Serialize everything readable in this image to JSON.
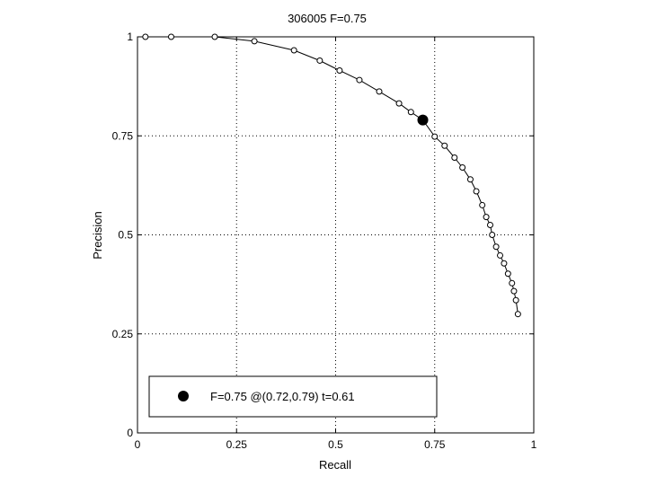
{
  "chart_data": {
    "type": "line",
    "title": "306005 F=0.75",
    "xlabel": "Recall",
    "ylabel": "Precision",
    "xlim": [
      0,
      1
    ],
    "ylim": [
      0,
      1
    ],
    "xticks": [
      0,
      0.25,
      0.5,
      0.75,
      1
    ],
    "yticks": [
      0,
      0.25,
      0.5,
      0.75,
      1
    ],
    "xtick_labels": [
      "0",
      "0.25",
      "0.5",
      "0.75",
      "1"
    ],
    "ytick_labels": [
      "0",
      "0.25",
      "0.5",
      "0.75",
      "1"
    ],
    "grid": true,
    "legend_position": "bottom-left",
    "series": [
      {
        "marker": "open-circle",
        "color": "#000000",
        "points": [
          [
            0.02,
            1.0
          ],
          [
            0.085,
            1.0
          ],
          [
            0.195,
            1.0
          ],
          [
            0.295,
            0.989
          ],
          [
            0.395,
            0.966
          ],
          [
            0.46,
            0.94
          ],
          [
            0.51,
            0.915
          ],
          [
            0.56,
            0.891
          ],
          [
            0.61,
            0.862
          ],
          [
            0.66,
            0.832
          ],
          [
            0.69,
            0.81
          ],
          [
            0.72,
            0.79
          ],
          [
            0.75,
            0.748
          ],
          [
            0.775,
            0.725
          ],
          [
            0.8,
            0.695
          ],
          [
            0.82,
            0.67
          ],
          [
            0.84,
            0.64
          ],
          [
            0.855,
            0.61
          ],
          [
            0.87,
            0.575
          ],
          [
            0.88,
            0.545
          ],
          [
            0.89,
            0.525
          ],
          [
            0.895,
            0.5
          ],
          [
            0.905,
            0.47
          ],
          [
            0.915,
            0.448
          ],
          [
            0.925,
            0.428
          ],
          [
            0.935,
            0.402
          ],
          [
            0.945,
            0.378
          ],
          [
            0.95,
            0.358
          ],
          [
            0.955,
            0.335
          ],
          [
            0.96,
            0.3
          ]
        ]
      }
    ],
    "highlight": {
      "x": 0.72,
      "y": 0.79,
      "marker": "filled-circle",
      "label": "F=0.75 @(0.72,0.79) t=0.61"
    }
  }
}
